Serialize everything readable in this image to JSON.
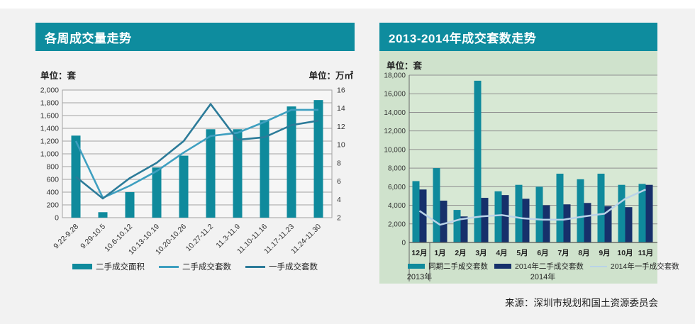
{
  "page": {
    "source": "来源：深圳市规划和国土资源委员会"
  },
  "colors": {
    "page_bg": "#f2f2f2",
    "header_teal": "#0e8c9e",
    "teal_bar": "#0f8a9c",
    "light_blue_line": "#3e9fc0",
    "dark_blue_line": "#2c7b99",
    "navy_bar": "#16306b",
    "pale_blue_line": "#b9d3e8",
    "green_panel": "#cfe2cc",
    "green_plot": "#d7e8d4",
    "left_plot_bg": "#f6f6f6",
    "grid_gray": "#a3a3a3",
    "grid_gray_right": "#8f8f8f"
  },
  "left_chart": {
    "title": "各周成交量走势",
    "unit_left": "单位：套",
    "unit_right": "单位：万㎡"
  },
  "right_chart": {
    "title": "2013-2014年成交套数走势",
    "unit": "单位：套"
  },
  "chart_data": [
    {
      "type": "combo-bar-line",
      "title": "各周成交量走势",
      "categories": [
        "9.22-9.28",
        "9.29-10.5",
        "10.6-10.12",
        "10.13-10.19",
        "10.20-10.26",
        "10.27-11.2",
        "11.3-11.9",
        "11.10-11.16",
        "11.17-11.23",
        "11.24-11.30"
      ],
      "y_left": {
        "label": "单位：套",
        "min": 0,
        "max": 2000,
        "step": 200
      },
      "y_right": {
        "label": "单位：万㎡",
        "min": 2,
        "max": 16,
        "step": 2
      },
      "grid": true,
      "legend_position": "bottom",
      "series": [
        {
          "name": "二手成交面积",
          "type": "bar",
          "axis": "right",
          "color": "#0f8a9c",
          "values": [
            11.0,
            2.6,
            4.8,
            7.5,
            8.8,
            11.7,
            11.7,
            12.7,
            14.2,
            14.9
          ]
        },
        {
          "name": "二手成交套数",
          "type": "line",
          "axis": "left",
          "color": "#3e9fc0",
          "values": [
            1200,
            310,
            500,
            730,
            1020,
            1280,
            1330,
            1500,
            1690,
            1690
          ]
        },
        {
          "name": "一手成交套数",
          "type": "line",
          "axis": "left",
          "color": "#2c7b99",
          "values": [
            640,
            300,
            620,
            860,
            1200,
            1780,
            1220,
            1260,
            1450,
            1520
          ]
        }
      ]
    },
    {
      "type": "combo-bar-line",
      "title": "2013-2014年成交套数走势",
      "categories": [
        "12月",
        "1月",
        "2月",
        "3月",
        "4月",
        "5月",
        "6月",
        "7月",
        "8月",
        "9月",
        "10月",
        "11月"
      ],
      "y": {
        "label": "单位：套",
        "min": 0,
        "max": 18000,
        "step": 2000
      },
      "grid": true,
      "legend_position": "bottom",
      "x_axis_groups": [
        {
          "label": "2013年",
          "start": 0,
          "end": 0
        },
        {
          "label": "2014年",
          "start": 1,
          "end": 11
        }
      ],
      "series": [
        {
          "name": "同期二手成交套数",
          "type": "bar",
          "color": "#0f8a9c",
          "values": [
            6600,
            8000,
            3500,
            17400,
            5500,
            6200,
            6000,
            7400,
            6800,
            7400,
            6200,
            6300
          ]
        },
        {
          "name": "2014年二手成交套数",
          "type": "bar",
          "color": "#16306b",
          "values": [
            5700,
            4500,
            2800,
            4800,
            5100,
            4700,
            4000,
            4100,
            4250,
            3900,
            3800,
            6200
          ]
        },
        {
          "name": "2014年一手成交套数",
          "type": "line",
          "color": "#b9d3e8",
          "values": [
            3400,
            1900,
            2500,
            2800,
            2950,
            2600,
            2450,
            2450,
            2800,
            3100,
            4700,
            5700
          ]
        }
      ]
    }
  ]
}
